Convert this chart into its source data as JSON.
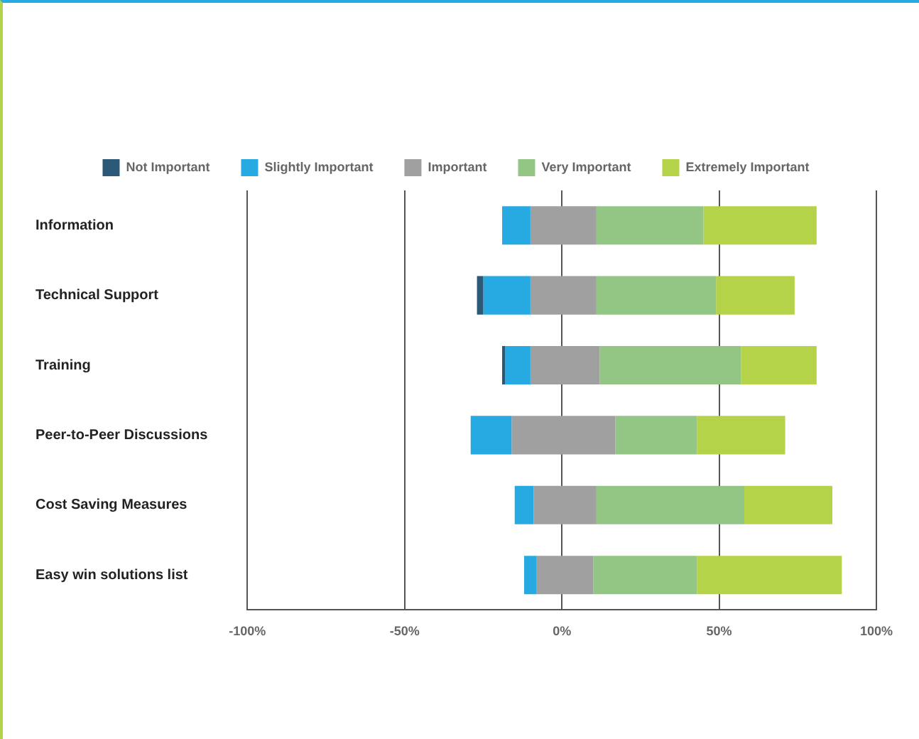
{
  "chart_data": {
    "type": "bar",
    "orientation": "horizontal",
    "categories": [
      "Information",
      "Technical Support",
      "Training",
      "Peer-to-Peer Discussions",
      "Cost Saving Measures",
      "Easy win solutions list"
    ],
    "series": [
      {
        "name": "Not Important",
        "color": "#2b5876",
        "base": [
          null,
          -27,
          -19,
          null,
          null,
          null
        ],
        "values": [
          null,
          2,
          1,
          null,
          null,
          null
        ]
      },
      {
        "name": "Slightly Important",
        "color": "#27aae1",
        "base": [
          -19,
          -25,
          -18,
          -29,
          -15,
          -12
        ],
        "values": [
          9,
          15,
          8,
          13,
          6,
          4
        ]
      },
      {
        "name": "Important",
        "color": "#a0a0a0",
        "base": [
          -10,
          -10,
          -10,
          -16,
          -9,
          -8
        ],
        "values": [
          21,
          21,
          22,
          33,
          20,
          18
        ]
      },
      {
        "name": "Very Important",
        "color": "#93c584",
        "base": [
          11,
          11,
          12,
          17,
          11,
          10
        ],
        "values": [
          34,
          38,
          45,
          26,
          47,
          33
        ]
      },
      {
        "name": "Extremely Important",
        "color": "#b5d349",
        "base": [
          45,
          49,
          57,
          43,
          58,
          43
        ],
        "values": [
          36,
          25,
          24,
          28,
          28,
          46
        ]
      }
    ],
    "xlim": [
      -100,
      100
    ],
    "xticks": [
      {
        "value": -100,
        "label": "-100%"
      },
      {
        "value": -50,
        "label": "-50%"
      },
      {
        "value": 0,
        "label": "0%"
      },
      {
        "value": 50,
        "label": "50%"
      },
      {
        "value": 100,
        "label": "100%"
      }
    ],
    "grid": "x",
    "legend": "top"
  }
}
